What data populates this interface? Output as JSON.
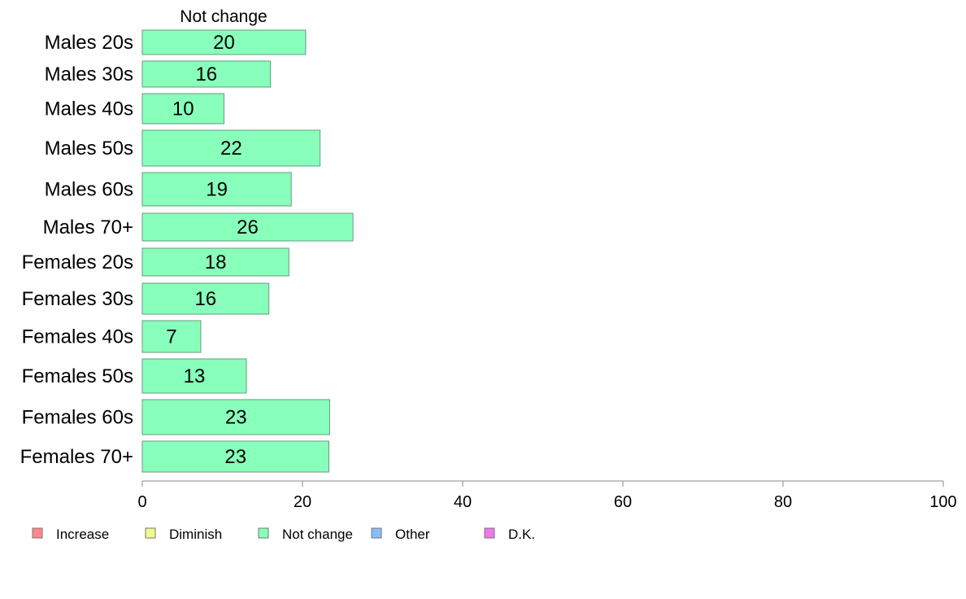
{
  "chart_data": {
    "type": "bar",
    "orientation": "horizontal",
    "title": "Not change",
    "categories": [
      "Males 20s",
      "Males 30s",
      "Males 40s",
      "Males 50s",
      "Males 60s",
      "Males 70+",
      "Females 20s",
      "Females 30s",
      "Females 40s",
      "Females 50s",
      "Females 60s",
      "Females 70+"
    ],
    "values": [
      20.4,
      16,
      10.2,
      22.2,
      18.6,
      26.3,
      18.3,
      15.8,
      7.3,
      13,
      23.4,
      23.3
    ],
    "value_labels": [
      "20",
      "16",
      "10",
      "22",
      "19",
      "26",
      "18",
      "16",
      "7",
      "13",
      "23",
      "23"
    ],
    "xlim": [
      0,
      100
    ],
    "xticks": [
      0,
      20,
      40,
      60,
      80,
      100
    ],
    "xlabel": "",
    "ylabel": "",
    "grid": false,
    "bar_color": "#88ffbb",
    "bar_border_color": "#6a9a80",
    "legend": {
      "placement": "bottom-left",
      "items": [
        {
          "label": "Increase",
          "color": "#ff8888"
        },
        {
          "label": "Diminish",
          "color": "#eeff88"
        },
        {
          "label": "Not change",
          "color": "#88ffbb"
        },
        {
          "label": "Other",
          "color": "#88bbff"
        },
        {
          "label": "D.K.",
          "color": "#ee77ee"
        }
      ]
    }
  }
}
